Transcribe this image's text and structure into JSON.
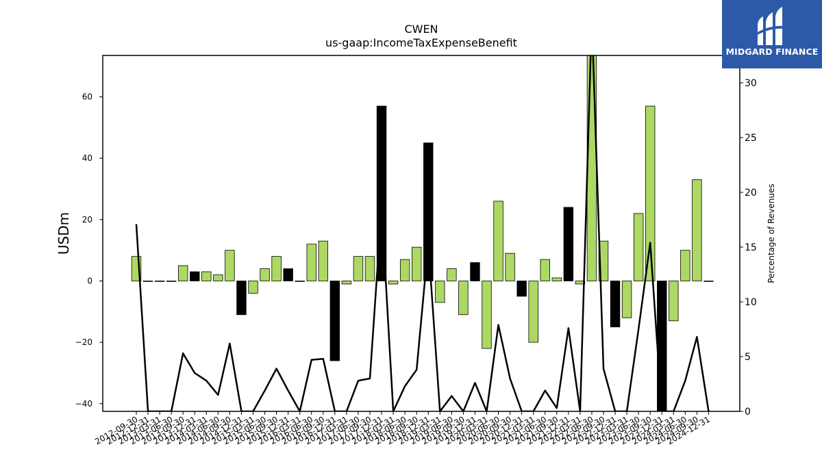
{
  "chart_data": {
    "type": "bar",
    "title": "CWEN",
    "subtitle": "us-gaap:IncomeTaxExpenseBenefit",
    "ylabel": "USDm",
    "y2label": "Percentage of Revenues",
    "ylim": [
      -42.5,
      73.5
    ],
    "y2lim": [
      0,
      32.5
    ],
    "yticks": [
      -40,
      -20,
      0,
      20,
      40,
      60
    ],
    "y2ticks": [
      0,
      5,
      10,
      15,
      20,
      25,
      30
    ],
    "grid": false,
    "categories": [
      "2012-09-30",
      "2012-12-31",
      "2013-03-31",
      "2013-06-30",
      "2013-09-30",
      "2013-12-31",
      "2014-03-31",
      "2014-06-30",
      "2014-09-30",
      "2014-12-31",
      "2015-03-31",
      "2015-06-30",
      "2015-09-30",
      "2015-12-31",
      "2016-03-31",
      "2016-06-30",
      "2016-09-30",
      "2016-12-31",
      "2017-03-31",
      "2017-06-30",
      "2017-09-30",
      "2017-12-31",
      "2018-03-31",
      "2018-06-30",
      "2018-09-30",
      "2018-12-31",
      "2019-03-31",
      "2019-06-30",
      "2019-09-30",
      "2019-12-31",
      "2020-03-31",
      "2020-06-30",
      "2020-09-30",
      "2020-12-31",
      "2021-03-31",
      "2021-06-30",
      "2021-09-30",
      "2021-12-31",
      "2022-03-31",
      "2022-06-30",
      "2022-09-30",
      "2022-12-31",
      "2023-03-31",
      "2023-06-30",
      "2023-09-30",
      "2023-12-31",
      "2024-03-31",
      "2024-06-30",
      "2024-09-30",
      "2024-12-31"
    ],
    "series": [
      {
        "values": [
          8,
          0,
          0,
          0,
          5,
          3,
          3,
          2,
          10,
          -11,
          -4,
          4,
          8,
          4,
          0,
          12,
          13,
          -26,
          -1,
          8,
          8,
          57,
          -1,
          7,
          11,
          45,
          -7,
          4,
          -11,
          6,
          -22,
          26,
          9,
          -5,
          -20,
          7,
          1,
          24,
          -1,
          80,
          13,
          -15,
          -12,
          22,
          57,
          -43,
          -13,
          10,
          33,
          0
        ],
        "colors": [
          "#acd863",
          "#acd863",
          "#acd863",
          "#acd863",
          "#acd863",
          "#000000",
          "#acd863",
          "#acd863",
          "#acd863",
          "#000000",
          "#acd863",
          "#acd863",
          "#acd863",
          "#000000",
          "#acd863",
          "#acd863",
          "#acd863",
          "#000000",
          "#acd863",
          "#acd863",
          "#acd863",
          "#000000",
          "#acd863",
          "#acd863",
          "#acd863",
          "#000000",
          "#acd863",
          "#acd863",
          "#acd863",
          "#000000",
          "#acd863",
          "#acd863",
          "#acd863",
          "#000000",
          "#acd863",
          "#acd863",
          "#acd863",
          "#000000",
          "#acd863",
          "#acd863",
          "#acd863",
          "#000000",
          "#acd863",
          "#acd863",
          "#acd863",
          "#000000",
          "#acd863",
          "#acd863",
          "#acd863",
          "#000000"
        ]
      },
      {
        "axis": "right",
        "type": "line",
        "color": "#000000",
        "values": [
          17.1,
          0,
          0,
          0,
          5.3,
          3.5,
          2.8,
          1.5,
          6.2,
          0,
          0,
          1.9,
          3.9,
          1.9,
          0,
          4.7,
          4.8,
          0,
          0,
          2.8,
          3.0,
          18.6,
          0,
          2.3,
          3.8,
          15.3,
          0,
          1.4,
          0,
          2.6,
          0,
          7.9,
          3.0,
          0,
          0,
          1.9,
          0.3,
          7.6,
          0,
          36,
          3.9,
          0,
          0,
          7.5,
          15.4,
          0,
          0,
          2.8,
          6.8,
          0
        ]
      }
    ]
  },
  "logo": {
    "text": "MIDGARD FINANCE"
  }
}
